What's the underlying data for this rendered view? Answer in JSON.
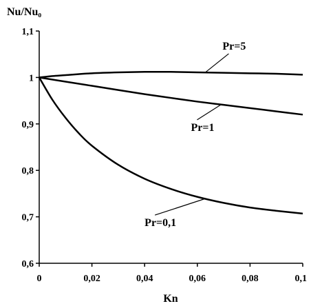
{
  "chart_data": {
    "type": "line",
    "ylabel": "Nu/Nu₀",
    "xlabel": "Kn",
    "xlim": [
      0,
      0.1
    ],
    "ylim": [
      0.6,
      1.1
    ],
    "x_ticks": [
      0,
      0.02,
      0.04,
      0.06,
      0.08,
      0.1
    ],
    "x_tick_labels": [
      "0",
      "0,02",
      "0,04",
      "0,06",
      "0,08",
      "0,1"
    ],
    "y_ticks": [
      0.6,
      0.7,
      0.8,
      0.9,
      1.0,
      1.1
    ],
    "y_tick_labels": [
      "0,6",
      "0,7",
      "0,8",
      "0,9",
      "1",
      "1,1"
    ],
    "grid": false,
    "legend": "none",
    "line_color": "#000000",
    "series": [
      {
        "name": "Pr=5",
        "x": [
          0,
          0.005,
          0.01,
          0.02,
          0.03,
          0.04,
          0.05,
          0.06,
          0.07,
          0.08,
          0.09,
          0.1
        ],
        "y": [
          1.0,
          1.003,
          1.005,
          1.009,
          1.011,
          1.012,
          1.012,
          1.011,
          1.01,
          1.009,
          1.008,
          1.006
        ]
      },
      {
        "name": "Pr=1",
        "x": [
          0,
          0.01,
          0.02,
          0.03,
          0.04,
          0.05,
          0.06,
          0.07,
          0.08,
          0.09,
          0.1
        ],
        "y": [
          1.0,
          0.991,
          0.982,
          0.973,
          0.964,
          0.956,
          0.948,
          0.941,
          0.934,
          0.927,
          0.92
        ]
      },
      {
        "name": "Pr=0,1",
        "x": [
          0,
          0.005,
          0.01,
          0.015,
          0.02,
          0.03,
          0.04,
          0.05,
          0.06,
          0.07,
          0.08,
          0.09,
          0.1
        ],
        "y": [
          1.0,
          0.952,
          0.913,
          0.88,
          0.853,
          0.812,
          0.782,
          0.76,
          0.743,
          0.73,
          0.72,
          0.713,
          0.707
        ]
      }
    ],
    "annotations": [
      {
        "text": "Pr=5",
        "series": 0,
        "point_x": 0.063,
        "label_x": 0.074,
        "label_y": 1.06
      },
      {
        "text": "Pr=1",
        "series": 1,
        "point_x": 0.069,
        "label_x": 0.062,
        "label_y": 0.885
      },
      {
        "text": "Pr=0,1",
        "series": 2,
        "point_x": 0.063,
        "label_x": 0.046,
        "label_y": 0.68
      }
    ]
  }
}
